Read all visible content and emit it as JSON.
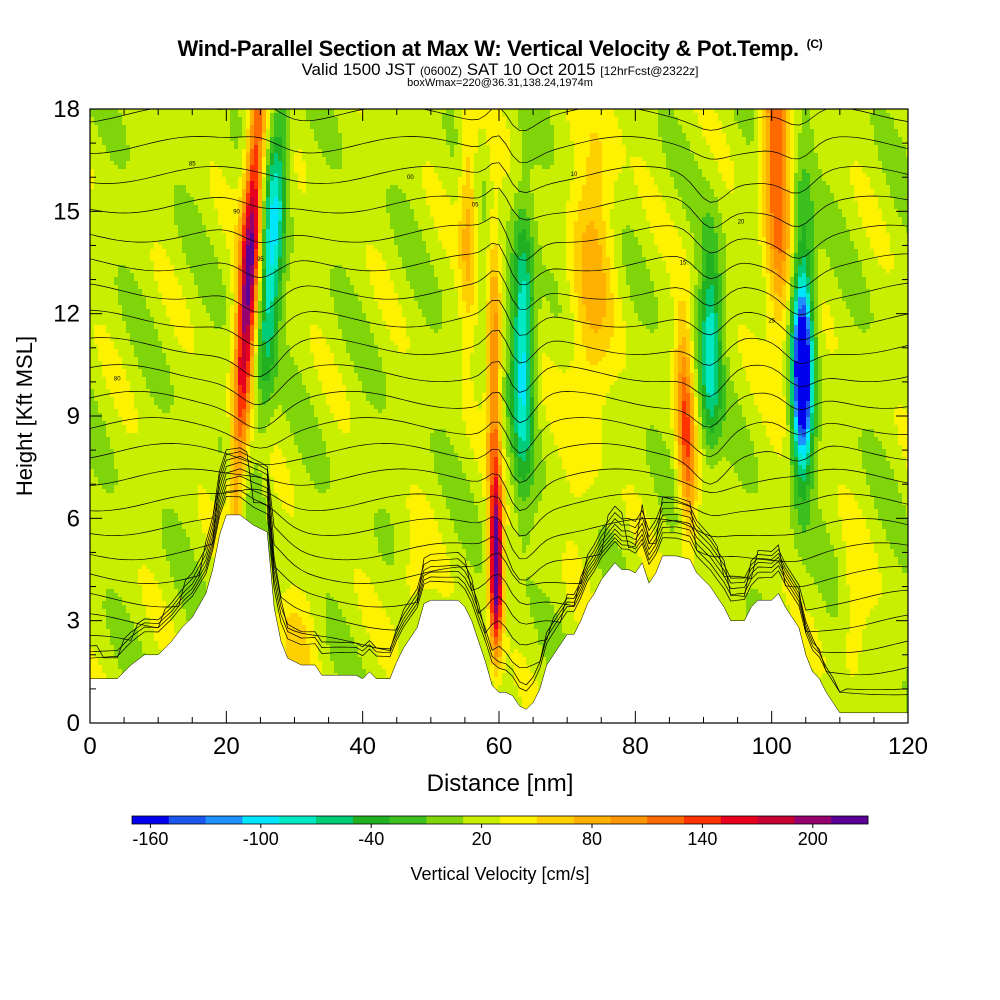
{
  "title": {
    "main": "Wind-Parallel Section at Max W: Vertical Velocity & Pot.Temp.",
    "copyright": "(C)",
    "valid_prefix": "Valid 1500 JST",
    "utc": "(0600Z)",
    "valid_suffix": "SAT 10 Oct 2015",
    "forecast": "[12hrFcst@2322z]",
    "box": "boxWmax=220@36.31,138.24,1974m"
  },
  "chart_data": {
    "type": "heatmap",
    "xlabel": "Distance [nm]",
    "ylabel": "Height [Kft MSL]",
    "xlim": [
      0,
      120
    ],
    "ylim": [
      0,
      18
    ],
    "xticks": [
      "0",
      "20",
      "40",
      "60",
      "80",
      "100",
      "120"
    ],
    "yticks": [
      "0",
      "3",
      "6",
      "9",
      "12",
      "15",
      "18"
    ],
    "colorbar": {
      "label": "Vertical Velocity [cm/s]",
      "tick_labels": [
        "-160",
        "-100",
        "-40",
        "20",
        "80",
        "140",
        "200"
      ],
      "levels_min": -170,
      "level_step": 20,
      "colors": [
        "#0000ee",
        "#1a55ee",
        "#1e90ff",
        "#00e5ff",
        "#00e8c4",
        "#00cc77",
        "#21b021",
        "#3cc01e",
        "#7fd40a",
        "#c8ee00",
        "#fff200",
        "#ffd000",
        "#ffb000",
        "#ff9500",
        "#ff6a00",
        "#ff3300",
        "#e8001e",
        "#c80032",
        "#96006e",
        "#5a0096"
      ]
    },
    "updraft_cores": [
      {
        "x_nm": 24.5,
        "z_kft": 13,
        "w_cms": 170
      },
      {
        "x_nm": 59.5,
        "z_kft": 4.5,
        "w_cms": 220
      },
      {
        "x_nm": 75,
        "z_kft": 14,
        "w_cms": 80
      },
      {
        "x_nm": 88,
        "z_kft": 8,
        "w_cms": 120
      },
      {
        "x_nm": 101,
        "z_kft": 16,
        "w_cms": 120
      }
    ],
    "downdraft_cores": [
      {
        "x_nm": 28.5,
        "z_kft": 14,
        "w_cms": -100
      },
      {
        "x_nm": 63.5,
        "z_kft": 11,
        "w_cms": -110
      },
      {
        "x_nm": 91,
        "z_kft": 11,
        "w_cms": -100
      },
      {
        "x_nm": 104.5,
        "z_kft": 10,
        "w_cms": -160
      }
    ],
    "terrain_kft": [
      [
        0,
        1.3
      ],
      [
        4,
        1.3
      ],
      [
        6,
        1.7
      ],
      [
        8,
        2.0
      ],
      [
        10,
        2.0
      ],
      [
        12,
        2.4
      ],
      [
        13.5,
        2.8
      ],
      [
        15,
        3.1
      ],
      [
        17,
        3.8
      ],
      [
        18,
        4.5
      ],
      [
        19,
        5.5
      ],
      [
        20,
        6.1
      ],
      [
        22,
        6.1
      ],
      [
        24,
        5.8
      ],
      [
        26,
        5.6
      ],
      [
        27,
        3.4
      ],
      [
        28,
        2.4
      ],
      [
        29,
        1.9
      ],
      [
        31,
        1.7
      ],
      [
        33,
        1.7
      ],
      [
        34,
        1.4
      ],
      [
        36,
        1.4
      ],
      [
        37,
        1.4
      ],
      [
        38,
        1.4
      ],
      [
        39,
        1.4
      ],
      [
        40,
        1.3
      ],
      [
        41,
        1.5
      ],
      [
        42,
        1.3
      ],
      [
        44,
        1.3
      ],
      [
        45,
        1.8
      ],
      [
        46,
        2.2
      ],
      [
        48,
        2.8
      ],
      [
        49,
        3.5
      ],
      [
        50,
        3.6
      ],
      [
        52,
        3.6
      ],
      [
        54,
        3.6
      ],
      [
        55,
        3.4
      ],
      [
        56,
        3.0
      ],
      [
        57,
        2.4
      ],
      [
        58,
        1.8
      ],
      [
        59,
        1.1
      ],
      [
        60,
        0.9
      ],
      [
        61,
        0.9
      ],
      [
        62,
        0.8
      ],
      [
        63,
        0.5
      ],
      [
        64,
        0.4
      ],
      [
        65,
        0.6
      ],
      [
        66,
        1.0
      ],
      [
        67,
        1.7
      ],
      [
        68,
        2.0
      ],
      [
        70,
        2.6
      ],
      [
        71,
        2.6
      ],
      [
        72,
        3.0
      ],
      [
        73,
        3.5
      ],
      [
        74,
        3.8
      ],
      [
        75,
        4.2
      ],
      [
        77,
        4.7
      ],
      [
        78,
        4.5
      ],
      [
        79,
        4.5
      ],
      [
        80,
        4.4
      ],
      [
        81,
        4.7
      ],
      [
        82,
        4.1
      ],
      [
        83,
        4.4
      ],
      [
        84,
        4.9
      ],
      [
        86,
        4.9
      ],
      [
        88,
        4.8
      ],
      [
        89,
        4.4
      ],
      [
        90,
        4.2
      ],
      [
        91,
        4.0
      ],
      [
        92,
        3.7
      ],
      [
        93,
        3.4
      ],
      [
        94,
        3.0
      ],
      [
        96,
        3.0
      ],
      [
        97,
        3.4
      ],
      [
        98,
        3.6
      ],
      [
        100,
        3.6
      ],
      [
        101,
        3.8
      ],
      [
        102,
        3.4
      ],
      [
        103,
        3.1
      ],
      [
        104,
        2.8
      ],
      [
        105,
        2.0
      ],
      [
        106,
        1.5
      ],
      [
        107,
        1.3
      ],
      [
        108,
        0.9
      ],
      [
        109,
        0.6
      ],
      [
        110,
        0.3
      ],
      [
        112,
        0.3
      ],
      [
        120,
        0.3
      ]
    ],
    "theta_contours": {
      "levels": [
        292,
        294,
        296,
        298,
        300,
        302,
        304,
        306,
        308,
        310,
        312,
        314,
        316,
        318,
        320,
        322,
        324,
        326,
        328,
        330,
        332,
        334,
        336,
        338,
        340,
        342,
        344,
        346,
        348
      ],
      "labels": [
        "80",
        "85",
        "90",
        "95",
        "00",
        "05",
        "10",
        "15",
        "20",
        "25",
        "30",
        "35",
        "40",
        "45",
        "50"
      ]
    }
  }
}
